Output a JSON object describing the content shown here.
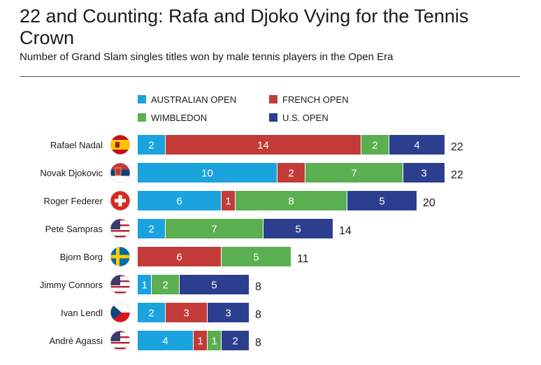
{
  "title": "22 and Counting: Rafa and Djoko Vying for the Tennis Crown",
  "subtitle": "Number of Grand Slam singles titles won by male tennis players in the Open Era",
  "chart_data": {
    "type": "bar",
    "orientation": "horizontal",
    "stacked": true,
    "legend_position": "top",
    "categories": [
      "Rafael Nadal",
      "Novak Djokovic",
      "Roger  Federer",
      "Pete Sampras",
      "Bjorn Borg",
      "Jimmy Connors",
      "Ivan Lendl",
      "André Agassi"
    ],
    "flags": [
      "spain-flag-icon",
      "serbia-flag-icon",
      "switzerland-flag-icon",
      "usa-flag-icon",
      "sweden-flag-icon",
      "usa-flag-icon",
      "czech-flag-icon",
      "usa-flag-icon"
    ],
    "series": [
      {
        "name": "AUSTRALIAN OPEN",
        "color": "#1aa3dd",
        "values": [
          2,
          10,
          6,
          2,
          0,
          1,
          2,
          4
        ]
      },
      {
        "name": "FRENCH OPEN",
        "color": "#c23b38",
        "values": [
          14,
          2,
          1,
          0,
          6,
          0,
          3,
          1
        ]
      },
      {
        "name": "WIMBLEDON",
        "color": "#5aaf50",
        "values": [
          2,
          7,
          8,
          7,
          5,
          2,
          0,
          1
        ]
      },
      {
        "name": "U.S. OPEN",
        "color": "#2c3f8f",
        "values": [
          4,
          3,
          5,
          5,
          0,
          5,
          3,
          2
        ]
      }
    ],
    "totals": [
      22,
      22,
      20,
      14,
      11,
      8,
      8,
      8
    ],
    "legend_order": [
      "AUSTRALIAN OPEN",
      "FRENCH OPEN",
      "WIMBLEDON",
      "U.S. OPEN"
    ]
  }
}
